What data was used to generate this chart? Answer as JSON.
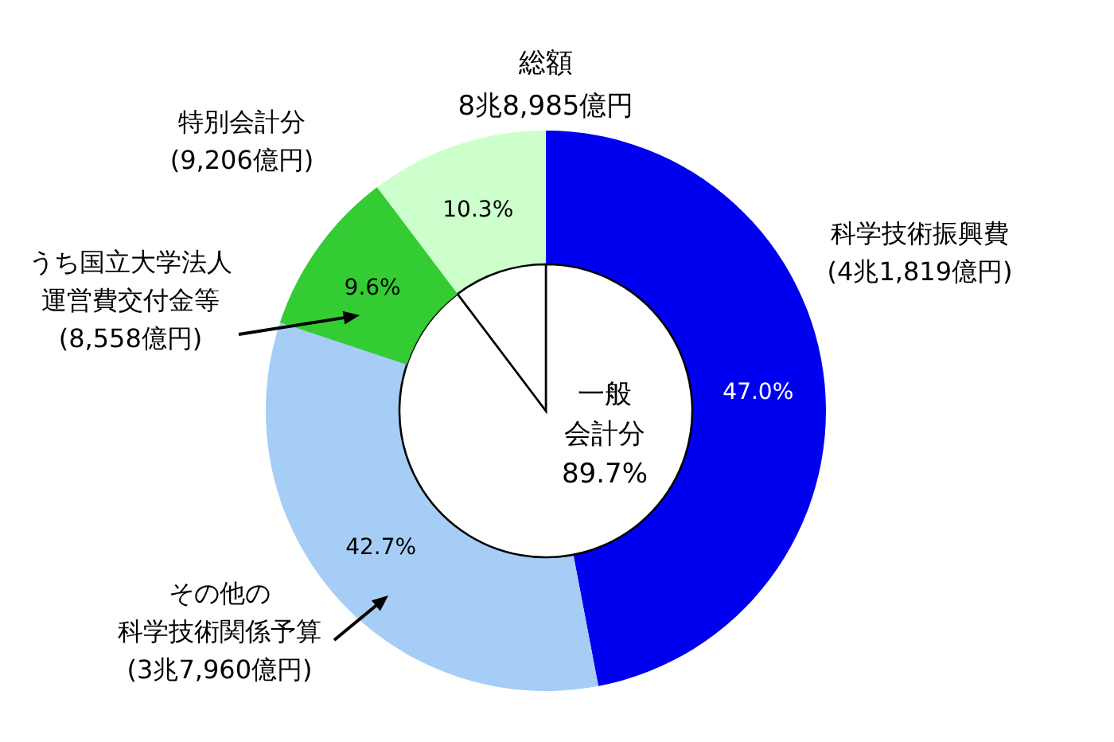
{
  "chart_data": [
    {
      "type": "donut",
      "title": "総額",
      "subtitle": "8兆8,985億円",
      "categories": [
        "科学技術振興費\n(4兆1,819億円)",
        "その他の科学技術関係予算\n(3兆7,960億円)",
        "特別会計分\n(9,206億円)"
      ],
      "values": [
        47.0,
        42.7,
        10.3
      ],
      "value_labels": [
        "47.0%",
        "42.7%",
        "10.3%"
      ],
      "colors": [
        "#0000f0",
        "#a6cdf5",
        "#ccffcc"
      ]
    },
    {
      "type": "pie",
      "categories": [
        "一般会計分",
        null
      ],
      "values": [
        89.7,
        10.3
      ],
      "value_labels": [
        "89.7%",
        null
      ],
      "colors": [
        "#ffffff",
        "#ffffff"
      ]
    },
    {
      "type": "other",
      "categories": [
        "うち国立大学法人運営費交付金等\n(8,558億円)"
      ],
      "values": [
        9.6
      ],
      "value_labels": [
        "9.6%"
      ],
      "colors": [
        "#33cc33"
      ]
    }
  ]
}
